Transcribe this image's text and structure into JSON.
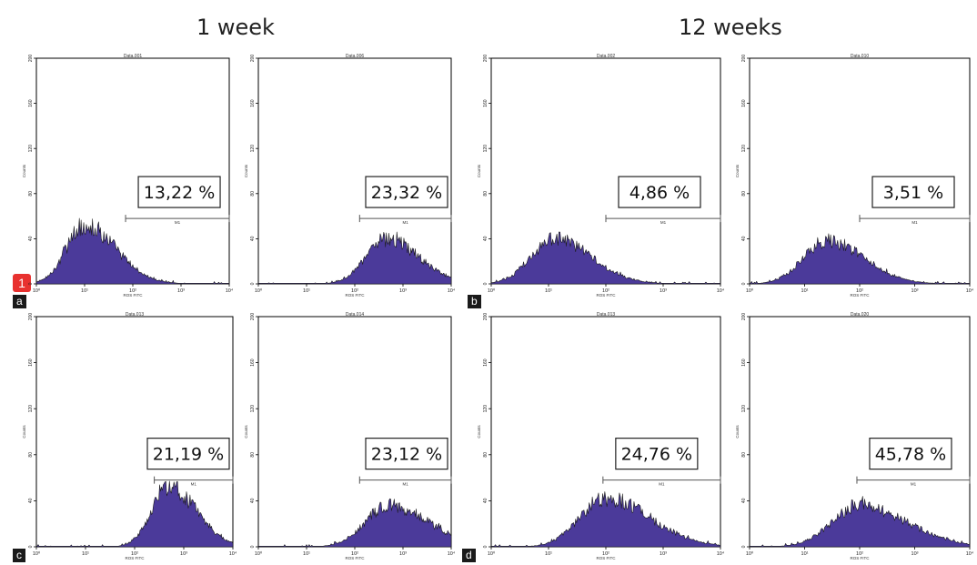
{
  "headers": {
    "left": "1 week",
    "right": "12 weeks"
  },
  "marker": "1",
  "tags": {
    "a": "a",
    "b": "b",
    "c": "c",
    "d": "d"
  },
  "colors": {
    "fill": "#4b3a9a",
    "outline": "#1a1a1a",
    "frame": "#000000"
  },
  "chart_data": [
    {
      "type": "area",
      "panel": "a",
      "title": "Data.001",
      "xlabel": "ROS FITC",
      "ylabel": "Counts",
      "xscale": "log",
      "xlim": [
        1,
        10000
      ],
      "ylim": [
        0,
        200
      ],
      "xticks": [
        "10⁰",
        "10¹",
        "10²",
        "10³",
        "10⁴"
      ],
      "yticks": [
        "0",
        "40",
        "80",
        "120",
        "160",
        "200"
      ],
      "peak_log10": 1.0,
      "peak_count": 52,
      "spread": 0.38,
      "tail": 0.7,
      "gate": {
        "label": "M1",
        "from_log10": 1.85,
        "to_log10": 4.0,
        "level": 58
      },
      "gate_percent": "13,22 %"
    },
    {
      "type": "area",
      "panel": "a",
      "title": "Data.006",
      "xlabel": "ROS FITC",
      "ylabel": "Counts",
      "xscale": "log",
      "xlim": [
        1,
        10000
      ],
      "ylim": [
        0,
        200
      ],
      "xticks": [
        "10⁰",
        "10¹",
        "10²",
        "10³",
        "10⁴"
      ],
      "yticks": [
        "0",
        "40",
        "80",
        "120",
        "160",
        "200"
      ],
      "peak_log10": 2.65,
      "peak_count": 40,
      "spread": 0.42,
      "tail": 0.6,
      "gate": {
        "label": "M1",
        "from_log10": 2.1,
        "to_log10": 4.0,
        "level": 58
      },
      "gate_percent": "23,32 %"
    },
    {
      "type": "area",
      "panel": "b",
      "title": "Data.002",
      "xlabel": "ROS FITC",
      "ylabel": "Counts",
      "xscale": "log",
      "xlim": [
        1,
        10000
      ],
      "ylim": [
        0,
        200
      ],
      "xticks": [
        "10⁰",
        "10¹",
        "10²",
        "10³",
        "10⁴"
      ],
      "yticks": [
        "0",
        "40",
        "80",
        "120",
        "160",
        "200"
      ],
      "peak_log10": 1.1,
      "peak_count": 40,
      "spread": 0.4,
      "tail": 0.6,
      "gate": {
        "label": "M1",
        "from_log10": 2.0,
        "to_log10": 4.0,
        "level": 58
      },
      "gate_percent": "4,86 %"
    },
    {
      "type": "area",
      "panel": "b",
      "title": "Data.010",
      "xlabel": "ROS FITC",
      "ylabel": "Counts",
      "xscale": "log",
      "xlim": [
        1,
        10000
      ],
      "ylim": [
        0,
        200
      ],
      "xticks": [
        "10⁰",
        "10¹",
        "10²",
        "10³",
        "10⁴"
      ],
      "yticks": [
        "0",
        "40",
        "80",
        "120",
        "160",
        "200"
      ],
      "peak_log10": 1.4,
      "peak_count": 38,
      "spread": 0.42,
      "tail": 0.6,
      "gate": {
        "label": "M1",
        "from_log10": 2.0,
        "to_log10": 4.0,
        "level": 58
      },
      "gate_percent": "3,51 %"
    },
    {
      "type": "area",
      "panel": "c",
      "title": "Data.013",
      "xlabel": "ROS FITC",
      "ylabel": "Counts",
      "xscale": "log",
      "xlim": [
        1,
        10000
      ],
      "ylim": [
        0,
        200
      ],
      "xticks": [
        "10⁰",
        "10¹",
        "10²",
        "10³",
        "10⁴"
      ],
      "yticks": [
        "0",
        "40",
        "80",
        "120",
        "160",
        "200"
      ],
      "peak_log10": 2.7,
      "peak_count": 52,
      "spread": 0.35,
      "tail": 0.6,
      "gate": {
        "label": "M1",
        "from_log10": 2.4,
        "to_log10": 4.0,
        "level": 58
      },
      "gate_percent": "21,19 %"
    },
    {
      "type": "area",
      "panel": "c",
      "title": "Data.014",
      "xlabel": "ROS FITC",
      "ylabel": "Counts",
      "xscale": "log",
      "xlim": [
        1,
        10000
      ],
      "ylim": [
        0,
        200
      ],
      "xticks": [
        "10⁰",
        "10¹",
        "10²",
        "10³",
        "10⁴"
      ],
      "yticks": [
        "0",
        "40",
        "80",
        "120",
        "160",
        "200"
      ],
      "peak_log10": 2.7,
      "peak_count": 36,
      "spread": 0.48,
      "tail": 0.7,
      "gate": {
        "label": "M1",
        "from_log10": 2.1,
        "to_log10": 4.0,
        "level": 58
      },
      "gate_percent": "23,12 %"
    },
    {
      "type": "area",
      "panel": "d",
      "title": "Data.013",
      "xlabel": "ROS FITC",
      "ylabel": "Counts",
      "xscale": "log",
      "xlim": [
        1,
        10000
      ],
      "ylim": [
        0,
        200
      ],
      "xticks": [
        "10⁰",
        "10¹",
        "10²",
        "10³",
        "10⁴"
      ],
      "yticks": [
        "0",
        "40",
        "80",
        "120",
        "160",
        "200"
      ],
      "peak_log10": 2.0,
      "peak_count": 42,
      "spread": 0.45,
      "tail": 0.7,
      "gate": {
        "label": "M1",
        "from_log10": 1.95,
        "to_log10": 4.0,
        "level": 58
      },
      "gate_percent": "24,76 %"
    },
    {
      "type": "area",
      "panel": "d",
      "title": "Data.020",
      "xlabel": "ROS FITC",
      "ylabel": "Counts",
      "xscale": "log",
      "xlim": [
        1,
        10000
      ],
      "ylim": [
        0,
        200
      ],
      "xticks": [
        "10⁰",
        "10¹",
        "10²",
        "10³",
        "10⁴"
      ],
      "yticks": [
        "0",
        "40",
        "80",
        "120",
        "160",
        "200"
      ],
      "peak_log10": 2.0,
      "peak_count": 36,
      "spread": 0.5,
      "tail": 0.7,
      "gate": {
        "label": "M1",
        "from_log10": 1.95,
        "to_log10": 4.0,
        "level": 58
      },
      "gate_percent": "45,78 %"
    }
  ]
}
